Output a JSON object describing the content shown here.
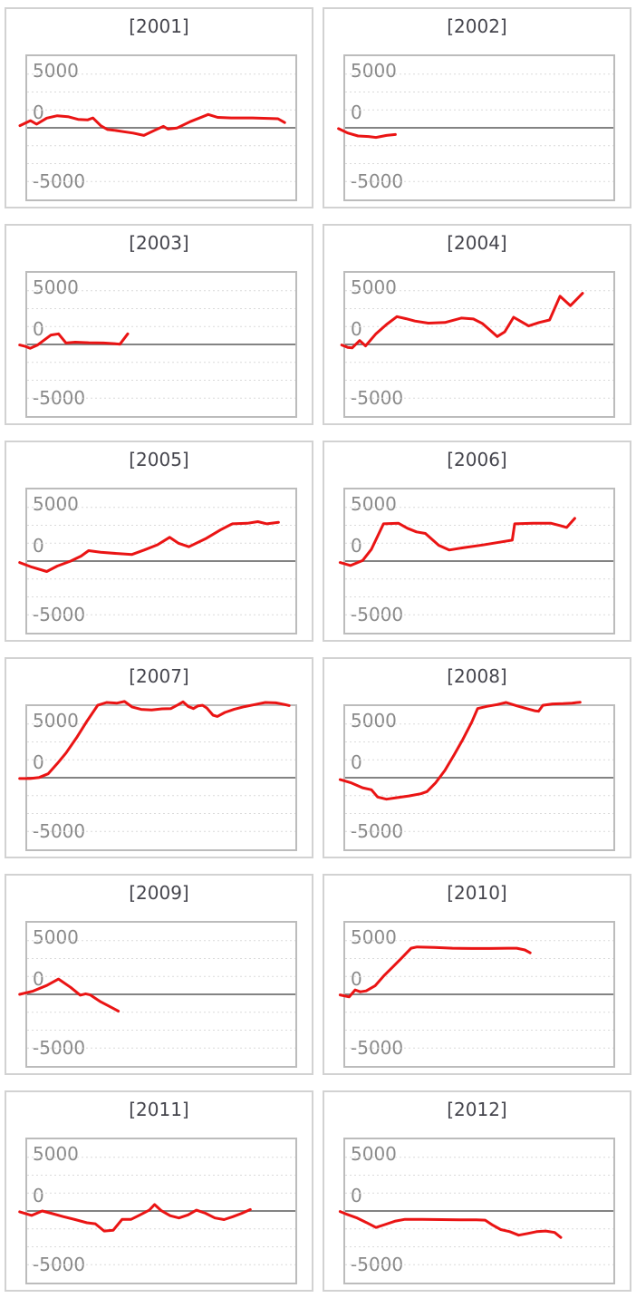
{
  "page": {
    "background": "#ffffff"
  },
  "colors": {
    "line": "#ea1414",
    "title_text": "#45454d",
    "tick_text": "#8a8a8a",
    "gridline": "#dadada",
    "zero_line": "#838383",
    "panel_border": "#d2d2d2",
    "plot_border": "#bcbcbc",
    "panel_bg": "#ffffff"
  },
  "y_axis": {
    "tick_labels": [
      "5000",
      "0",
      "-5000"
    ],
    "range": [
      -5000,
      5000
    ],
    "zero_line": true,
    "gridlines": "dashed horizontal, every 1250 units",
    "x_axis_labels": "none shown",
    "x_unit": "fraction of plot width (0 to 1)"
  },
  "chart_data": [
    {
      "type": "line",
      "title": "[2001]",
      "ylim": [
        -5000,
        5000
      ],
      "y_ticks": [
        "5000",
        "0",
        "-5000"
      ],
      "points": [
        [
          -0.027,
          150
        ],
        [
          0.012,
          500
        ],
        [
          0.035,
          250
        ],
        [
          0.073,
          680
        ],
        [
          0.112,
          840
        ],
        [
          0.152,
          780
        ],
        [
          0.19,
          590
        ],
        [
          0.225,
          550
        ],
        [
          0.245,
          690
        ],
        [
          0.275,
          140
        ],
        [
          0.3,
          -120
        ],
        [
          0.325,
          -170
        ],
        [
          0.36,
          -270
        ],
        [
          0.395,
          -370
        ],
        [
          0.435,
          -530
        ],
        [
          0.475,
          -180
        ],
        [
          0.508,
          100
        ],
        [
          0.525,
          -90
        ],
        [
          0.558,
          -20
        ],
        [
          0.608,
          430
        ],
        [
          0.675,
          930
        ],
        [
          0.71,
          730
        ],
        [
          0.76,
          690
        ],
        [
          0.84,
          690
        ],
        [
          0.91,
          650
        ],
        [
          0.935,
          630
        ],
        [
          0.96,
          370
        ]
      ]
    },
    {
      "type": "line",
      "title": "[2002]",
      "ylim": [
        -5000,
        5000
      ],
      "y_ticks": [
        "5000",
        "0",
        "-5000"
      ],
      "points": [
        [
          -0.025,
          -60
        ],
        [
          0.009,
          -360
        ],
        [
          0.048,
          -570
        ],
        [
          0.087,
          -610
        ],
        [
          0.115,
          -670
        ],
        [
          0.154,
          -530
        ],
        [
          0.187,
          -470
        ]
      ]
    },
    {
      "type": "line",
      "title": "[2003]",
      "ylim": [
        -5000,
        5000
      ],
      "y_ticks": [
        "5000",
        "0",
        "-5000"
      ],
      "points": [
        [
          -0.028,
          -40
        ],
        [
          -0.006,
          -140
        ],
        [
          0.011,
          -270
        ],
        [
          0.039,
          -40
        ],
        [
          0.089,
          660
        ],
        [
          0.117,
          740
        ],
        [
          0.145,
          100
        ],
        [
          0.179,
          160
        ],
        [
          0.229,
          120
        ],
        [
          0.285,
          100
        ],
        [
          0.324,
          60
        ],
        [
          0.346,
          20
        ],
        [
          0.375,
          740
        ]
      ]
    },
    {
      "type": "line",
      "title": "[2004]",
      "ylim": [
        -5000,
        5000
      ],
      "y_ticks": [
        "5000",
        "0",
        "-5000"
      ],
      "points": [
        [
          -0.013,
          -40
        ],
        [
          0.009,
          -200
        ],
        [
          0.026,
          -240
        ],
        [
          0.054,
          270
        ],
        [
          0.076,
          -100
        ],
        [
          0.115,
          750
        ],
        [
          0.154,
          1390
        ],
        [
          0.193,
          1940
        ],
        [
          0.227,
          1800
        ],
        [
          0.26,
          1630
        ],
        [
          0.31,
          1490
        ],
        [
          0.372,
          1530
        ],
        [
          0.433,
          1840
        ],
        [
          0.478,
          1780
        ],
        [
          0.511,
          1470
        ],
        [
          0.545,
          920
        ],
        [
          0.567,
          550
        ],
        [
          0.595,
          880
        ],
        [
          0.628,
          1900
        ],
        [
          0.662,
          1530
        ],
        [
          0.684,
          1290
        ],
        [
          0.723,
          1530
        ],
        [
          0.762,
          1710
        ],
        [
          0.801,
          3370
        ],
        [
          0.84,
          2710
        ],
        [
          0.885,
          3570
        ]
      ]
    },
    {
      "type": "line",
      "title": "[2005]",
      "ylim": [
        -5000,
        5000
      ],
      "y_ticks": [
        "5000",
        "0",
        "-5000"
      ],
      "points": [
        [
          -0.028,
          -100
        ],
        [
          0.017,
          -420
        ],
        [
          0.073,
          -730
        ],
        [
          0.112,
          -350
        ],
        [
          0.162,
          0
        ],
        [
          0.201,
          350
        ],
        [
          0.229,
          730
        ],
        [
          0.274,
          620
        ],
        [
          0.341,
          520
        ],
        [
          0.391,
          460
        ],
        [
          0.436,
          770
        ],
        [
          0.486,
          1140
        ],
        [
          0.531,
          1660
        ],
        [
          0.564,
          1250
        ],
        [
          0.603,
          1000
        ],
        [
          0.665,
          1560
        ],
        [
          0.721,
          2180
        ],
        [
          0.765,
          2600
        ],
        [
          0.821,
          2640
        ],
        [
          0.86,
          2750
        ],
        [
          0.894,
          2600
        ],
        [
          0.937,
          2700
        ]
      ]
    },
    {
      "type": "line",
      "title": "[2006]",
      "ylim": [
        -5000,
        5000
      ],
      "y_ticks": [
        "5000",
        "0",
        "-5000"
      ],
      "points": [
        [
          -0.019,
          -100
        ],
        [
          0.02,
          -310
        ],
        [
          0.065,
          40
        ],
        [
          0.098,
          830
        ],
        [
          0.143,
          2600
        ],
        [
          0.199,
          2640
        ],
        [
          0.232,
          2290
        ],
        [
          0.266,
          2040
        ],
        [
          0.299,
          1930
        ],
        [
          0.349,
          1100
        ],
        [
          0.388,
          770
        ],
        [
          0.444,
          940
        ],
        [
          0.511,
          1120
        ],
        [
          0.573,
          1310
        ],
        [
          0.623,
          1460
        ],
        [
          0.632,
          2600
        ],
        [
          0.701,
          2640
        ],
        [
          0.768,
          2640
        ],
        [
          0.801,
          2480
        ],
        [
          0.826,
          2350
        ],
        [
          0.856,
          2980
        ]
      ]
    },
    {
      "type": "line",
      "title": "[2007]",
      "ylim": [
        -5000,
        5000
      ],
      "y_ticks": [
        "5000",
        "0",
        "-5000"
      ],
      "points": [
        [
          -0.028,
          -60
        ],
        [
          0.011,
          -60
        ],
        [
          0.045,
          20
        ],
        [
          0.078,
          270
        ],
        [
          0.112,
          990
        ],
        [
          0.145,
          1730
        ],
        [
          0.184,
          2790
        ],
        [
          0.223,
          3950
        ],
        [
          0.263,
          5060
        ],
        [
          0.296,
          5250
        ],
        [
          0.335,
          5210
        ],
        [
          0.363,
          5320
        ],
        [
          0.391,
          4940
        ],
        [
          0.425,
          4770
        ],
        [
          0.464,
          4730
        ],
        [
          0.503,
          4810
        ],
        [
          0.536,
          4830
        ],
        [
          0.564,
          5110
        ],
        [
          0.581,
          5300
        ],
        [
          0.6,
          4980
        ],
        [
          0.62,
          4830
        ],
        [
          0.637,
          5020
        ],
        [
          0.654,
          5060
        ],
        [
          0.67,
          4870
        ],
        [
          0.693,
          4370
        ],
        [
          0.709,
          4280
        ],
        [
          0.737,
          4560
        ],
        [
          0.771,
          4770
        ],
        [
          0.81,
          4960
        ],
        [
          0.849,
          5110
        ],
        [
          0.888,
          5250
        ],
        [
          0.927,
          5230
        ],
        [
          0.961,
          5110
        ],
        [
          0.977,
          5040
        ]
      ]
    },
    {
      "type": "line",
      "title": "[2008]",
      "ylim": [
        -5000,
        5000
      ],
      "y_ticks": [
        "5000",
        "0",
        "-5000"
      ],
      "points": [
        [
          -0.019,
          -130
        ],
        [
          0.02,
          -340
        ],
        [
          0.065,
          -700
        ],
        [
          0.098,
          -840
        ],
        [
          0.121,
          -1350
        ],
        [
          0.154,
          -1500
        ],
        [
          0.193,
          -1390
        ],
        [
          0.238,
          -1270
        ],
        [
          0.282,
          -1120
        ],
        [
          0.305,
          -970
        ],
        [
          0.338,
          -340
        ],
        [
          0.372,
          510
        ],
        [
          0.405,
          1560
        ],
        [
          0.439,
          2680
        ],
        [
          0.472,
          3880
        ],
        [
          0.494,
          4830
        ],
        [
          0.528,
          4980
        ],
        [
          0.567,
          5110
        ],
        [
          0.6,
          5250
        ],
        [
          0.64,
          5020
        ],
        [
          0.673,
          4850
        ],
        [
          0.706,
          4680
        ],
        [
          0.721,
          4640
        ],
        [
          0.737,
          5060
        ],
        [
          0.773,
          5150
        ],
        [
          0.812,
          5170
        ],
        [
          0.846,
          5210
        ],
        [
          0.876,
          5270
        ]
      ]
    },
    {
      "type": "line",
      "title": "[2009]",
      "ylim": [
        -5000,
        5000
      ],
      "y_ticks": [
        "5000",
        "0",
        "-5000"
      ],
      "points": [
        [
          -0.028,
          0
        ],
        [
          0.022,
          230
        ],
        [
          0.073,
          620
        ],
        [
          0.117,
          1070
        ],
        [
          0.162,
          490
        ],
        [
          0.198,
          -60
        ],
        [
          0.218,
          40
        ],
        [
          0.235,
          -40
        ],
        [
          0.274,
          -520
        ],
        [
          0.307,
          -840
        ],
        [
          0.34,
          -1170
        ]
      ]
    },
    {
      "type": "line",
      "title": "[2010]",
      "ylim": [
        -5000,
        5000
      ],
      "y_ticks": [
        "5000",
        "0",
        "-5000"
      ],
      "points": [
        [
          -0.019,
          -40
        ],
        [
          0.015,
          -180
        ],
        [
          0.037,
          310
        ],
        [
          0.056,
          180
        ],
        [
          0.078,
          240
        ],
        [
          0.112,
          610
        ],
        [
          0.145,
          1310
        ],
        [
          0.179,
          1940
        ],
        [
          0.212,
          2570
        ],
        [
          0.246,
          3220
        ],
        [
          0.268,
          3310
        ],
        [
          0.333,
          3270
        ],
        [
          0.4,
          3220
        ],
        [
          0.472,
          3200
        ],
        [
          0.539,
          3200
        ],
        [
          0.606,
          3220
        ],
        [
          0.64,
          3220
        ],
        [
          0.67,
          3100
        ],
        [
          0.69,
          2900
        ]
      ]
    },
    {
      "type": "line",
      "title": "[2011]",
      "ylim": [
        -5000,
        5000
      ],
      "y_ticks": [
        "5000",
        "0",
        "-5000"
      ],
      "points": [
        [
          -0.028,
          -60
        ],
        [
          0.017,
          -310
        ],
        [
          0.056,
          0
        ],
        [
          0.089,
          -160
        ],
        [
          0.134,
          -390
        ],
        [
          0.179,
          -600
        ],
        [
          0.223,
          -820
        ],
        [
          0.254,
          -890
        ],
        [
          0.287,
          -1400
        ],
        [
          0.321,
          -1340
        ],
        [
          0.354,
          -580
        ],
        [
          0.388,
          -580
        ],
        [
          0.421,
          -270
        ],
        [
          0.455,
          60
        ],
        [
          0.475,
          450
        ],
        [
          0.499,
          40
        ],
        [
          0.533,
          -330
        ],
        [
          0.566,
          -490
        ],
        [
          0.6,
          -270
        ],
        [
          0.631,
          60
        ],
        [
          0.665,
          -160
        ],
        [
          0.7,
          -490
        ],
        [
          0.734,
          -600
        ],
        [
          0.768,
          -390
        ],
        [
          0.801,
          -160
        ],
        [
          0.832,
          100
        ]
      ]
    },
    {
      "type": "line",
      "title": "[2012]",
      "ylim": [
        -5000,
        5000
      ],
      "y_ticks": [
        "5000",
        "0",
        "-5000"
      ],
      "points": [
        [
          -0.019,
          -40
        ],
        [
          0.003,
          -210
        ],
        [
          0.042,
          -470
        ],
        [
          0.078,
          -800
        ],
        [
          0.115,
          -1150
        ],
        [
          0.148,
          -950
        ],
        [
          0.188,
          -700
        ],
        [
          0.223,
          -580
        ],
        [
          0.288,
          -580
        ],
        [
          0.36,
          -600
        ],
        [
          0.427,
          -620
        ],
        [
          0.489,
          -620
        ],
        [
          0.522,
          -640
        ],
        [
          0.55,
          -990
        ],
        [
          0.58,
          -1300
        ],
        [
          0.614,
          -1440
        ],
        [
          0.647,
          -1690
        ],
        [
          0.681,
          -1570
        ],
        [
          0.714,
          -1440
        ],
        [
          0.748,
          -1400
        ],
        [
          0.781,
          -1500
        ],
        [
          0.804,
          -1850
        ]
      ]
    }
  ]
}
